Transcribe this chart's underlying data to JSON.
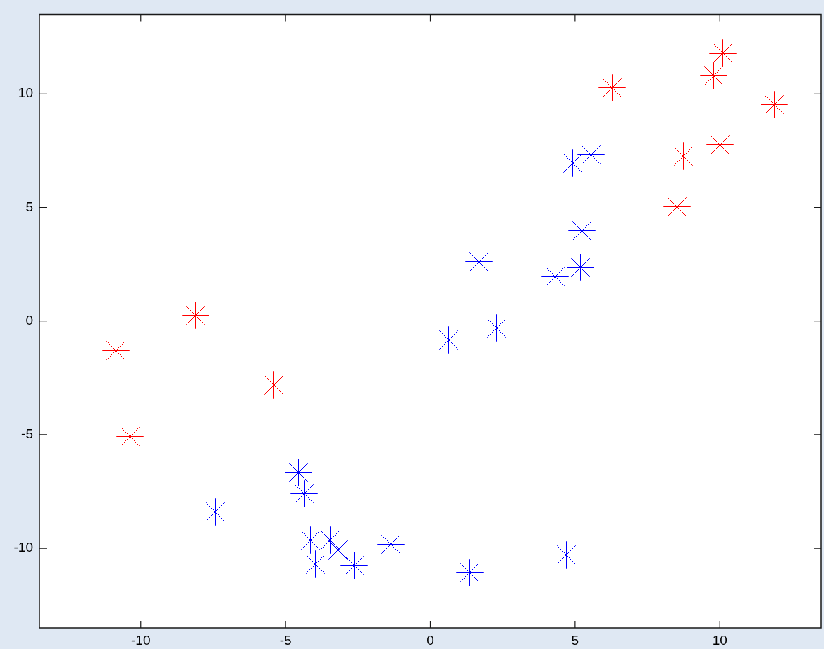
{
  "chart_data": {
    "type": "scatter",
    "series": [
      {
        "color": "#ff0000",
        "x": [
          6.27,
          10.1,
          9.78,
          11.87,
          10.01,
          8.73,
          8.51,
          -8.1,
          -10.87,
          -5.41,
          -10.37
        ],
        "values": [
          10.28,
          11.78,
          10.81,
          9.54,
          7.76,
          7.25,
          5.02,
          0.26,
          -1.3,
          -2.83,
          -5.07
        ]
      },
      {
        "color": "#0000ff",
        "x": [
          4.91,
          5.55,
          5.23,
          1.69,
          4.32,
          5.19,
          0.64,
          2.28,
          4.69,
          1.36,
          -7.42,
          -4.55,
          -4.37,
          -4.15,
          -3.46,
          -3.18,
          -3.96,
          -2.63,
          -1.37
        ],
        "values": [
          6.96,
          7.31,
          3.99,
          2.61,
          1.97,
          2.37,
          -0.83,
          -0.31,
          -10.28,
          -11.08,
          -8.4,
          -6.67,
          -7.59,
          -9.65,
          -9.65,
          -10.08,
          -10.69,
          -10.74,
          -9.83
        ]
      }
    ],
    "xlim": [
      -13.5,
      13.5
    ],
    "ylim": [
      -13.5,
      13.5
    ],
    "xticks": [
      -10,
      -5,
      0,
      5,
      10
    ],
    "yticks": [
      -10,
      -5,
      0,
      5,
      10
    ],
    "grid": false,
    "legend": false,
    "marker": "star"
  }
}
